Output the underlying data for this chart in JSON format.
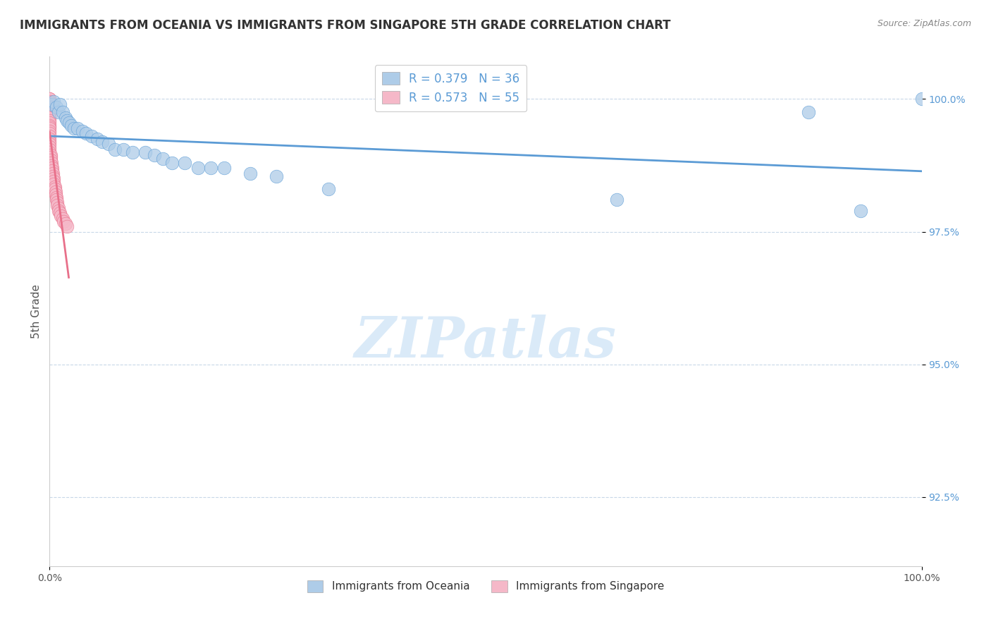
{
  "title": "IMMIGRANTS FROM OCEANIA VS IMMIGRANTS FROM SINGAPORE 5TH GRADE CORRELATION CHART",
  "source_text": "Source: ZipAtlas.com",
  "ylabel": "5th Grade",
  "xlim": [
    0.0,
    1.0
  ],
  "ylim": [
    0.912,
    1.008
  ],
  "ytick_values": [
    0.925,
    0.95,
    0.975,
    1.0
  ],
  "R_oceania": 0.379,
  "N_oceania": 36,
  "R_singapore": 0.573,
  "N_singapore": 55,
  "color_oceania": "#aecce8",
  "color_singapore": "#f5b8c8",
  "line_color_oceania": "#5b9bd5",
  "line_color_singapore": "#e8708a",
  "watermark_color": "#daeaf8",
  "legend_label_oceania": "Immigrants from Oceania",
  "legend_label_singapore": "Immigrants from Singapore",
  "oceania_x": [
    0.003,
    0.005,
    0.008,
    0.01,
    0.012,
    0.015,
    0.018,
    0.02,
    0.022,
    0.025,
    0.028,
    0.032,
    0.038,
    0.042,
    0.048,
    0.055,
    0.06,
    0.068,
    0.075,
    0.085,
    0.095,
    0.11,
    0.12,
    0.13,
    0.14,
    0.155,
    0.17,
    0.185,
    0.2,
    0.23,
    0.26,
    0.32,
    0.65,
    0.87,
    0.93,
    1.0
  ],
  "oceania_y": [
    0.999,
    0.9995,
    0.9985,
    0.9975,
    0.999,
    0.9975,
    0.9965,
    0.996,
    0.9955,
    0.995,
    0.9945,
    0.9945,
    0.994,
    0.9935,
    0.993,
    0.9925,
    0.992,
    0.9915,
    0.9905,
    0.9905,
    0.99,
    0.99,
    0.9895,
    0.9888,
    0.988,
    0.988,
    0.987,
    0.987,
    0.987,
    0.986,
    0.9855,
    0.983,
    0.981,
    0.9975,
    0.979,
    1.0
  ],
  "singapore_x": [
    0.0,
    0.0,
    0.0,
    0.0,
    0.0,
    0.0,
    0.0,
    0.0,
    0.0,
    0.0,
    0.0,
    0.0,
    0.0,
    0.0,
    0.0,
    0.0,
    0.0,
    0.0,
    0.0,
    0.0,
    0.0,
    0.0,
    0.0,
    0.0,
    0.0,
    0.0,
    0.0,
    0.001,
    0.001,
    0.001,
    0.002,
    0.002,
    0.003,
    0.003,
    0.004,
    0.004,
    0.005,
    0.005,
    0.005,
    0.006,
    0.006,
    0.007,
    0.007,
    0.008,
    0.008,
    0.009,
    0.009,
    0.01,
    0.01,
    0.012,
    0.013,
    0.015,
    0.016,
    0.018,
    0.02
  ],
  "singapore_y": [
    1.0,
    1.0,
    0.9995,
    0.999,
    0.999,
    0.9985,
    0.9985,
    0.998,
    0.998,
    0.9975,
    0.997,
    0.997,
    0.9965,
    0.996,
    0.9955,
    0.995,
    0.9948,
    0.9945,
    0.994,
    0.9935,
    0.993,
    0.9925,
    0.992,
    0.9915,
    0.991,
    0.9905,
    0.99,
    0.9895,
    0.989,
    0.9885,
    0.988,
    0.9875,
    0.987,
    0.9865,
    0.986,
    0.9855,
    0.985,
    0.9845,
    0.984,
    0.9835,
    0.983,
    0.9825,
    0.982,
    0.9815,
    0.981,
    0.9805,
    0.98,
    0.9795,
    0.979,
    0.9785,
    0.978,
    0.9775,
    0.977,
    0.9765,
    0.976
  ]
}
